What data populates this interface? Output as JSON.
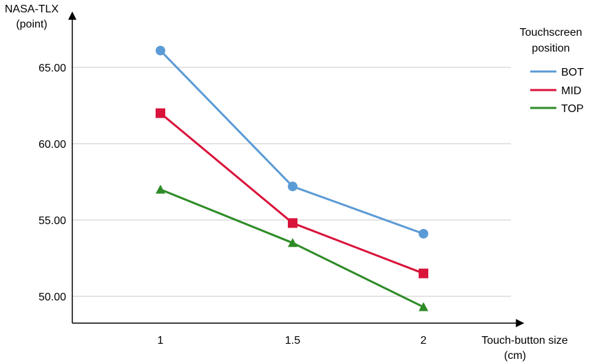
{
  "chart_data": {
    "type": "line",
    "ylabel": [
      "NASA-TLX",
      "(point)"
    ],
    "xlabel": [
      "Touch-button size",
      "(cm)"
    ],
    "x": [
      1,
      1.5,
      2
    ],
    "x_tick_labels": [
      "1",
      "1.5",
      "2"
    ],
    "ylim": [
      48.5,
      68.5
    ],
    "y_ticks": [
      50,
      55,
      60,
      65
    ],
    "y_tick_labels": [
      "50.00",
      "55.00",
      "60.00",
      "65.00"
    ],
    "grid": "horizontal",
    "legend": {
      "title": [
        "Touchscreen",
        "position"
      ],
      "placement": "top-right"
    },
    "series": [
      {
        "name": "BOT",
        "values": [
          66.1,
          57.2,
          54.1
        ],
        "color": "#5b9bd5",
        "marker": "circle"
      },
      {
        "name": "MID",
        "values": [
          62.0,
          54.8,
          51.5
        ],
        "color": "#d9133a",
        "marker": "square"
      },
      {
        "name": "TOP",
        "values": [
          57.0,
          53.5,
          49.3
        ],
        "color": "#2e8b27",
        "marker": "triangle"
      }
    ]
  }
}
